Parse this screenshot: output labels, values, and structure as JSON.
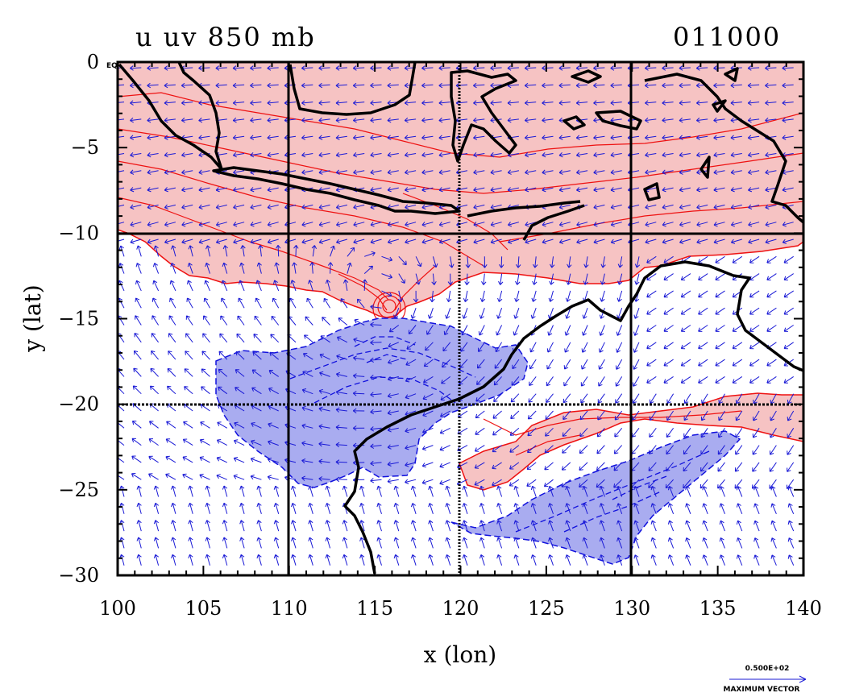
{
  "title": {
    "left": "u uv 850 mb",
    "right": "011000"
  },
  "axes": {
    "xlabel": "x (lon)",
    "ylabel": "y (lat)",
    "xlim": [
      100,
      140
    ],
    "ylim": [
      -30,
      0
    ],
    "xticks": [
      "100",
      "105",
      "110",
      "115",
      "120",
      "125",
      "130",
      "135",
      "140"
    ],
    "yticks": [
      "0",
      "-5",
      "-10",
      "-15",
      "-20",
      "-25",
      "-30"
    ],
    "eq_label": "EQ"
  },
  "grid": {
    "lon_lines": [
      110,
      120,
      130
    ],
    "lat_lines": [
      -10,
      -20
    ]
  },
  "vector_legend": {
    "value": "0.500E+02",
    "caption": "MAXIMUM VECTOR"
  },
  "colors": {
    "positive_fill": "#f6c3c3",
    "positive_line": "#ee1111",
    "negative_fill": "#a9acf0",
    "negative_line": "#1111dd",
    "vector": "#1a1ad6",
    "coast": "#000000"
  }
}
